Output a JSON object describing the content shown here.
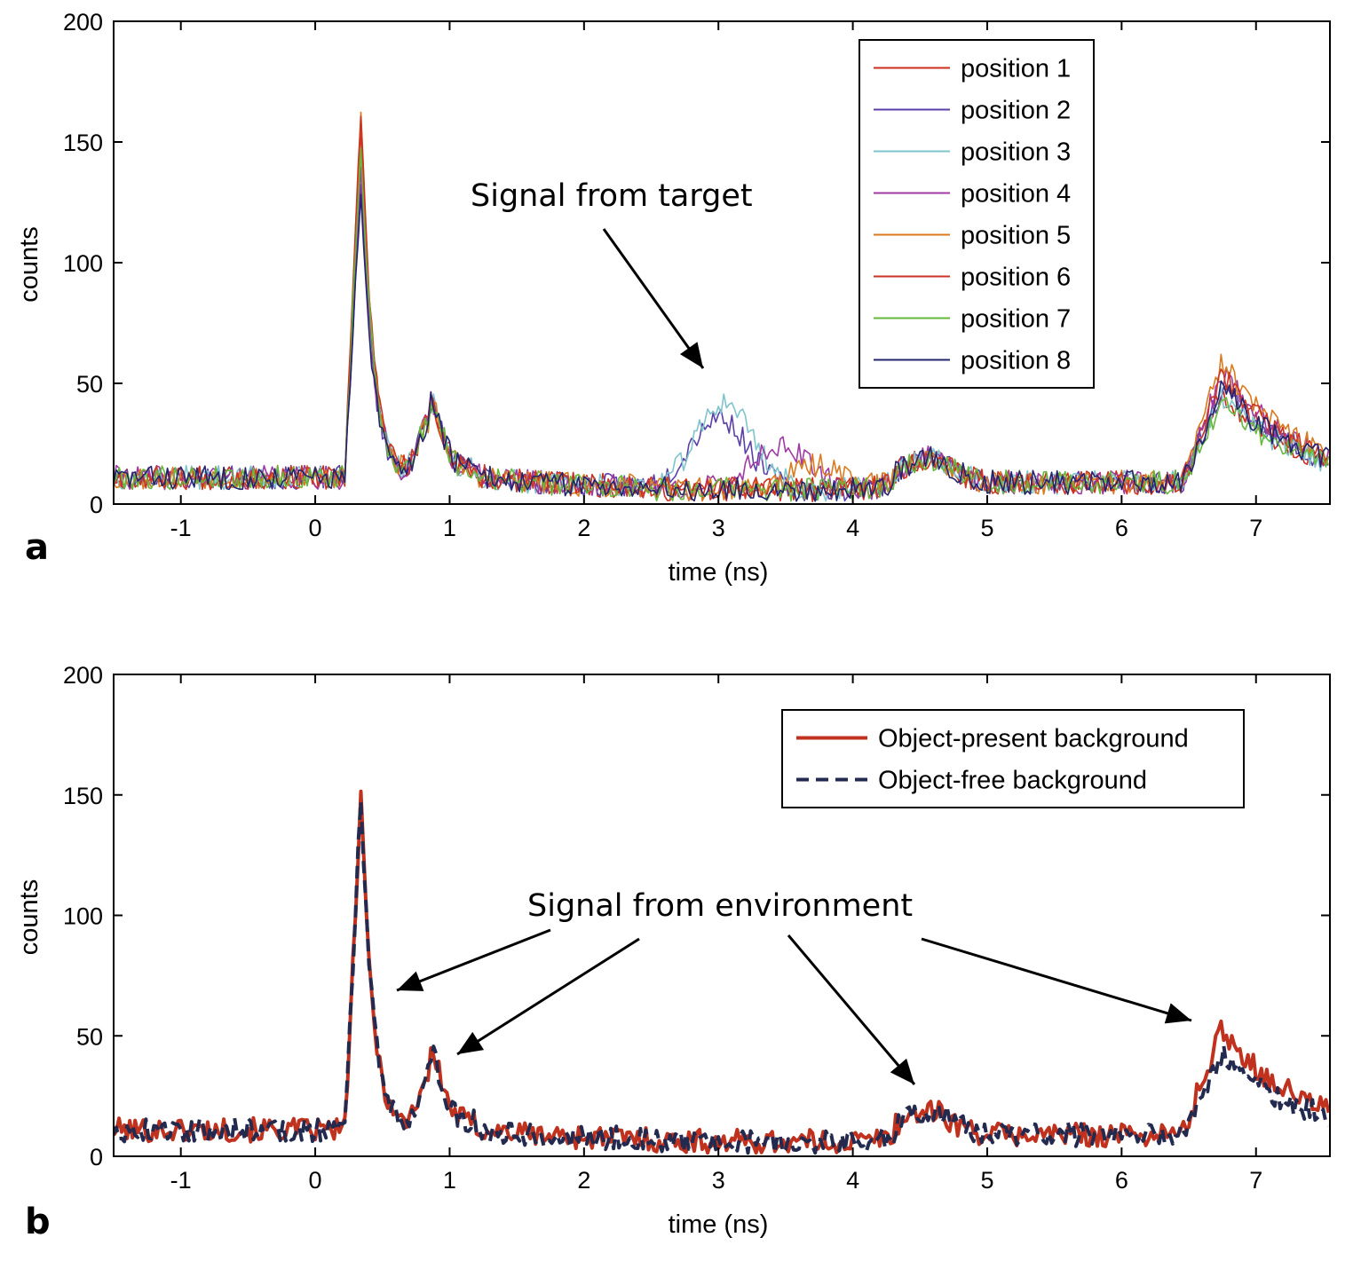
{
  "chart_data": [
    {
      "type": "line",
      "panel_label": "a",
      "xlabel": "time (ns)",
      "ylabel": "counts",
      "xlim": [
        -1.5,
        7.55
      ],
      "ylim": [
        0,
        200
      ],
      "xticks": [
        -1,
        0,
        1,
        2,
        3,
        4,
        5,
        6,
        7
      ],
      "yticks": [
        0,
        50,
        100,
        150,
        200
      ],
      "legend_position": "top-right",
      "annotation": "Signal from target",
      "series": [
        {
          "name": "position 1",
          "color": "#cc2d1f",
          "peak": 150,
          "target_center": null,
          "target_amp": 0,
          "late_amp": 38,
          "seed": 11
        },
        {
          "name": "position 2",
          "color": "#5b3fa8",
          "peak": 128,
          "target_center": 3.0,
          "target_amp": 30,
          "late_amp": 40,
          "seed": 23
        },
        {
          "name": "position 3",
          "color": "#7fc4cc",
          "peak": 138,
          "target_center": 3.05,
          "target_amp": 36,
          "late_amp": 36,
          "seed": 37
        },
        {
          "name": "position 4",
          "color": "#a03aa3",
          "peak": 132,
          "target_center": 3.45,
          "target_amp": 18,
          "late_amp": 46,
          "seed": 41
        },
        {
          "name": "position 5",
          "color": "#d97a1f",
          "peak": 156,
          "target_center": 3.75,
          "target_amp": 10,
          "late_amp": 50,
          "seed": 53
        },
        {
          "name": "position 6",
          "color": "#cc3322",
          "peak": 154,
          "target_center": null,
          "target_amp": 0,
          "late_amp": 45,
          "seed": 67
        },
        {
          "name": "position 7",
          "color": "#66b83a",
          "peak": 142,
          "target_center": null,
          "target_amp": 0,
          "late_amp": 34,
          "seed": 79
        },
        {
          "name": "position 8",
          "color": "#24246e",
          "peak": 120,
          "target_center": null,
          "target_amp": 0,
          "late_amp": 40,
          "seed": 83
        }
      ]
    },
    {
      "type": "line",
      "panel_label": "b",
      "xlabel": "time (ns)",
      "ylabel": "counts",
      "xlim": [
        -1.5,
        7.55
      ],
      "ylim": [
        0,
        200
      ],
      "xticks": [
        -1,
        0,
        1,
        2,
        3,
        4,
        5,
        6,
        7
      ],
      "yticks": [
        0,
        50,
        100,
        150,
        200
      ],
      "legend_position": "top-right",
      "annotation": "Signal from environment",
      "series": [
        {
          "name": "Object-present background",
          "color": "#c0311e",
          "style": "solid",
          "peak": 140,
          "target_center": null,
          "target_amp": 0,
          "late_amp": 44,
          "seed": 101
        },
        {
          "name": "Object-free background",
          "color": "#232a4f",
          "style": "dashed",
          "peak": 142,
          "target_center": null,
          "target_amp": 0,
          "late_amp": 33,
          "seed": 202
        }
      ]
    }
  ]
}
